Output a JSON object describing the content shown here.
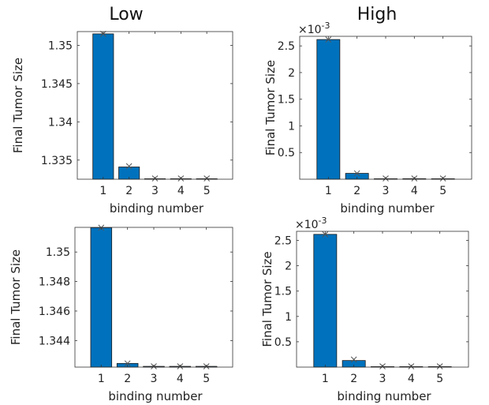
{
  "column_titles": {
    "low": "Low",
    "high": "High"
  },
  "chart_data": [
    {
      "type": "bar",
      "panel": "top-left",
      "categories": [
        "1",
        "2",
        "3",
        "4",
        "5"
      ],
      "values": [
        1.3515,
        1.3341,
        1.3325,
        1.3325,
        1.3325
      ],
      "markers": [
        1.3515,
        1.3342,
        1.3325,
        1.3325,
        1.3325
      ],
      "ylim": [
        1.3325,
        1.3518
      ],
      "yticks": [
        1.335,
        1.34,
        1.345,
        1.35
      ],
      "ytick_labels": [
        "1.335",
        "1.34",
        "1.345",
        "1.35"
      ],
      "exponent": "",
      "xlabel": "binding number",
      "ylabel": "Final Tumor Size",
      "bar_color": "#0072BD"
    },
    {
      "type": "bar",
      "panel": "top-right",
      "categories": [
        "1",
        "2",
        "3",
        "4",
        "5"
      ],
      "values": [
        0.00262,
        0.00011,
        0.0,
        1e-05,
        0.0
      ],
      "markers": [
        0.00262,
        0.00011,
        0.0,
        1e-05,
        0.0
      ],
      "ylim": [
        0.0,
        0.00268
      ],
      "yticks": [
        0.0005,
        0.001,
        0.0015,
        0.002,
        0.0025
      ],
      "ytick_labels": [
        "0.5",
        "1",
        "1.5",
        "2",
        "2.5"
      ],
      "exponent": "-3",
      "xlabel": "binding number",
      "ylabel": "Final Tumor Size",
      "bar_color": "#0072BD"
    },
    {
      "type": "bar",
      "panel": "bottom-left",
      "categories": [
        "1",
        "2",
        "3",
        "4",
        "5"
      ],
      "values": [
        1.35165,
        1.34245,
        1.34225,
        1.34225,
        1.34225
      ],
      "markers": [
        1.35165,
        1.34245,
        1.34225,
        1.34225,
        1.34225
      ],
      "ylim": [
        1.3422,
        1.35167
      ],
      "yticks": [
        1.344,
        1.346,
        1.348,
        1.35
      ],
      "ytick_labels": [
        "1.344",
        "1.346",
        "1.348",
        "1.35"
      ],
      "exponent": "",
      "xlabel": "binding number",
      "ylabel": "Final Tumor Size",
      "bar_color": "#0072BD"
    },
    {
      "type": "bar",
      "panel": "bottom-right",
      "categories": [
        "1",
        "2",
        "3",
        "4",
        "5"
      ],
      "values": [
        0.00262,
        0.00013,
        0.0,
        0.0,
        0.0
      ],
      "markers": [
        0.00262,
        0.00015,
        0.0,
        0.0,
        0.0
      ],
      "ylim": [
        0.0,
        0.00268
      ],
      "yticks": [
        0.0005,
        0.001,
        0.0015,
        0.002,
        0.0025
      ],
      "ytick_labels": [
        "0.5",
        "1",
        "1.5",
        "2",
        "2.5"
      ],
      "exponent": "-3",
      "xlabel": "binding number",
      "ylabel": "Final Tumor Size",
      "bar_color": "#0072BD"
    }
  ]
}
